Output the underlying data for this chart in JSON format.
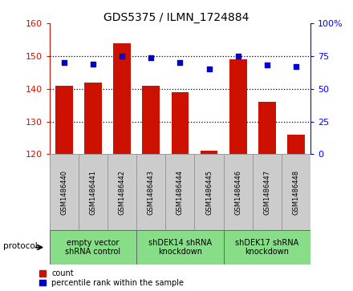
{
  "title": "GDS5375 / ILMN_1724884",
  "samples": [
    "GSM1486440",
    "GSM1486441",
    "GSM1486442",
    "GSM1486443",
    "GSM1486444",
    "GSM1486445",
    "GSM1486446",
    "GSM1486447",
    "GSM1486448"
  ],
  "counts": [
    141,
    142,
    154,
    141,
    139,
    121,
    149,
    136,
    126
  ],
  "percentiles": [
    70,
    69,
    75,
    74,
    70,
    65,
    75,
    68,
    67
  ],
  "ylim_left": [
    120,
    160
  ],
  "yticks_left": [
    120,
    130,
    140,
    150,
    160
  ],
  "ylim_right": [
    0,
    100
  ],
  "yticks_right": [
    0,
    25,
    50,
    75,
    100
  ],
  "bar_color": "#cc1100",
  "scatter_color": "#0000cc",
  "groups": [
    {
      "label": "empty vector\nshRNA control",
      "start": 0,
      "end": 3,
      "color": "#88dd88"
    },
    {
      "label": "shDEK14 shRNA\nknockdown",
      "start": 3,
      "end": 6,
      "color": "#88dd88"
    },
    {
      "label": "shDEK17 shRNA\nknockdown",
      "start": 6,
      "end": 9,
      "color": "#88dd88"
    }
  ],
  "protocol_label": "protocol",
  "legend_count_label": "count",
  "legend_pct_label": "percentile rank within the sample",
  "grid_color": "#000000",
  "background_color": "#ffffff",
  "sample_box_color": "#cccccc",
  "sample_box_edge": "#999999"
}
